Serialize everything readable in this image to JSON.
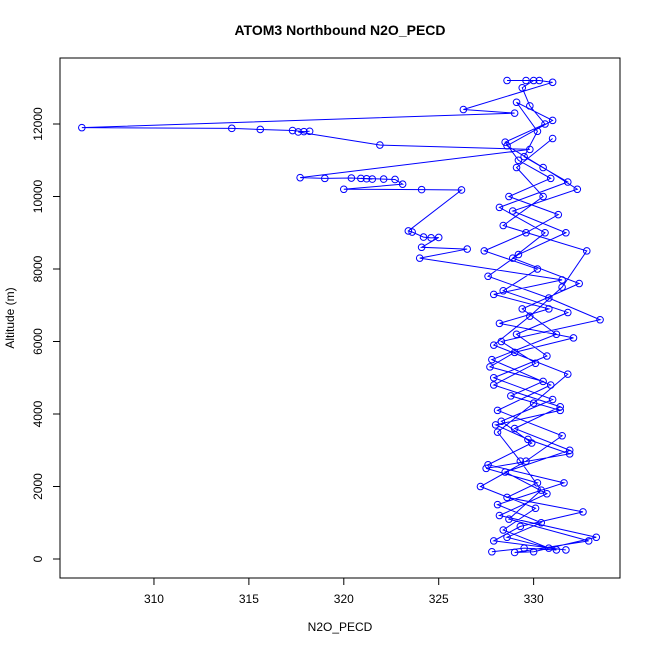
{
  "chart_data": {
    "type": "line",
    "marker": "circle",
    "color": "#0000ff",
    "title": "ATOM3 Northbound N2O_PECD",
    "x_label": "N2O_PECD",
    "y_label": "Altitude (m)",
    "xlim": [
      305.05,
      334.55
    ],
    "ylim": [
      -524,
      13821
    ],
    "xticks": [
      310,
      315,
      320,
      325,
      330
    ],
    "yticks": [
      0,
      2000,
      4000,
      6000,
      8000,
      10000,
      12000
    ],
    "x": [
      327.8,
      329.5,
      331.2,
      328.6,
      330.4,
      328.1,
      331.6,
      327.6,
      329.9,
      328.3,
      331.0,
      327.9,
      330.7,
      329.1,
      331.8,
      328.4,
      330.2,
      327.4,
      329.6,
      331.3,
      328.7,
      330.9,
      329.2,
      328.5,
      330.6,
      329.8,
      329.4,
      330.0,
      328.6,
      329.6,
      330.3,
      331.0,
      326.3,
      329.0,
      306.2,
      314.1,
      315.6,
      317.3,
      317.9,
      318.2,
      317.6,
      321.9,
      329.8,
      317.7,
      319.0,
      320.4,
      321.2,
      321.5,
      320.9,
      322.1,
      322.7,
      323.1,
      320.0,
      324.1,
      326.2,
      323.4,
      323.6,
      324.2,
      324.6,
      325.0,
      324.1,
      326.5,
      324.0,
      331.5,
      327.9,
      330.8,
      328.2,
      332.1,
      329.0,
      327.7,
      330.5,
      328.8,
      331.4,
      328.0,
      329.7,
      331.9,
      327.5,
      330.2,
      328.6,
      332.6,
      329.3,
      327.9,
      331.7,
      330.8,
      328.4,
      330.1,
      327.2,
      329.6,
      331.5,
      328.1,
      330.9,
      327.8,
      331.2,
      329.4,
      332.4,
      328.9,
      330.6,
      328.2,
      331.8,
      329.5,
      330.2,
      329.1,
      331.0,
      328.6,
      330.5,
      332.3,
      328.9,
      331.7,
      329.2,
      327.6,
      330.8,
      333.5,
      328.3,
      330.1,
      327.9,
      331.4,
      329.0,
      331.9,
      328.5,
      330.7,
      328.2,
      333.3,
      330.0,
      329.0,
      332.9,
      328.7,
      330.4,
      329.3,
      328.1,
      330.0,
      331.8,
      327.9,
      329.8,
      331.5,
      332.8,
      328.4,
      330.5,
      329.1,
      331.0
    ],
    "y": [
      200,
      300,
      250,
      600,
      1000,
      1500,
      2100,
      2600,
      3200,
      3800,
      4400,
      5000,
      5600,
      6200,
      6800,
      7400,
      8000,
      8500,
      9000,
      9500,
      10000,
      10500,
      11000,
      11500,
      12000,
      12500,
      13000,
      13200,
      13200,
      13200,
      13200,
      13150,
      12400,
      12300,
      11900,
      11880,
      11850,
      11820,
      11790,
      11800,
      11780,
      11420,
      11300,
      10520,
      10500,
      10510,
      10490,
      10480,
      10500,
      10480,
      10470,
      10340,
      10200,
      10190,
      10180,
      9050,
      9020,
      8880,
      8860,
      8870,
      8600,
      8550,
      8300,
      7700,
      7300,
      6900,
      6500,
      6100,
      5700,
      5300,
      4900,
      4500,
      4100,
      3700,
      3300,
      2900,
      2500,
      2100,
      1700,
      1300,
      900,
      500,
      250,
      300,
      800,
      1400,
      2000,
      2700,
      3400,
      4100,
      4800,
      5500,
      6200,
      6900,
      7600,
      8300,
      9000,
      9700,
      10400,
      11100,
      11800,
      12600,
      12100,
      11400,
      10800,
      10200,
      9600,
      9000,
      8400,
      7800,
      7200,
      6600,
      6000,
      5400,
      4800,
      4200,
      3600,
      3000,
      2400,
      1800,
      1200,
      600,
      200,
      180,
      500,
      1100,
      1900,
      2700,
      3500,
      4300,
      5100,
      5900,
      6700,
      7500,
      8500,
      9200,
      10000,
      10800,
      11600
    ]
  }
}
